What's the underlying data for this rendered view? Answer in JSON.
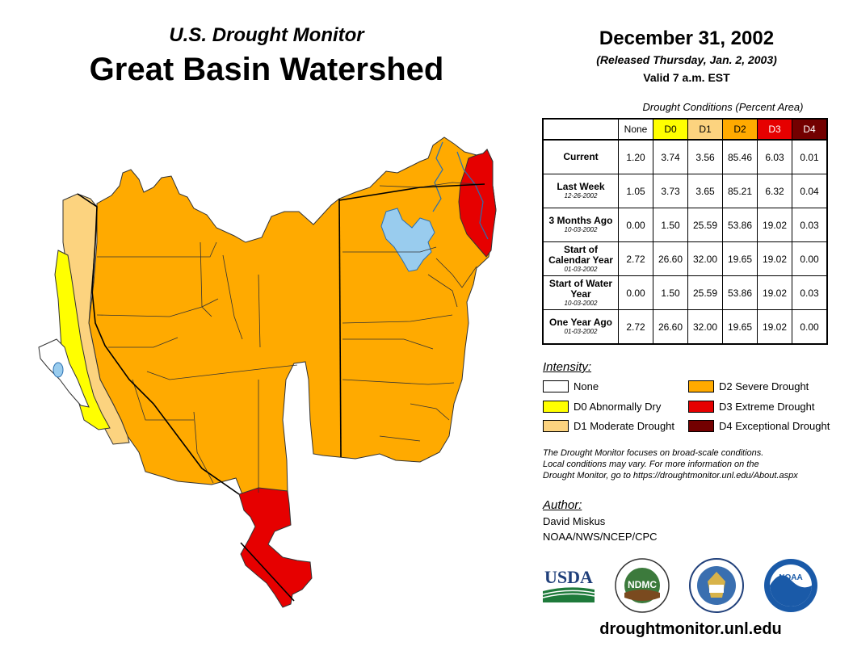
{
  "header": {
    "subtitle": "U.S. Drought Monitor",
    "title": "Great Basin Watershed",
    "date": "December 31, 2002",
    "released": "(Released Thursday, Jan. 2, 2003)",
    "valid": "Valid 7 a.m. EST"
  },
  "colors": {
    "none": "#ffffff",
    "d0": "#ffff00",
    "d1": "#fcd37f",
    "d2": "#ffaa00",
    "d3": "#e60000",
    "d4": "#730000",
    "water": "#99ccee"
  },
  "table": {
    "title": "Drought Conditions (Percent Area)",
    "columns": [
      "None",
      "D0",
      "D1",
      "D2",
      "D3",
      "D4"
    ],
    "rows": [
      {
        "label": "Current",
        "date": "",
        "values": [
          "1.20",
          "3.74",
          "3.56",
          "85.46",
          "6.03",
          "0.01"
        ]
      },
      {
        "label": "Last Week",
        "date": "12-26-2002",
        "values": [
          "1.05",
          "3.73",
          "3.65",
          "85.21",
          "6.32",
          "0.04"
        ]
      },
      {
        "label": "3 Months Ago",
        "date": "10-03-2002",
        "values": [
          "0.00",
          "1.50",
          "25.59",
          "53.86",
          "19.02",
          "0.03"
        ]
      },
      {
        "label": "Start of Calendar Year",
        "date": "01-03-2002",
        "values": [
          "2.72",
          "26.60",
          "32.00",
          "19.65",
          "19.02",
          "0.00"
        ]
      },
      {
        "label": "Start of Water Year",
        "date": "10-03-2002",
        "values": [
          "0.00",
          "1.50",
          "25.59",
          "53.86",
          "19.02",
          "0.03"
        ]
      },
      {
        "label": "One Year Ago",
        "date": "01-03-2002",
        "values": [
          "2.72",
          "26.60",
          "32.00",
          "19.65",
          "19.02",
          "0.00"
        ]
      }
    ]
  },
  "legend": {
    "heading": "Intensity:",
    "items": {
      "none": "None",
      "d0": "D0 Abnormally Dry",
      "d1": "D1 Moderate Drought",
      "d2": "D2 Severe Drought",
      "d3": "D3 Extreme Drought",
      "d4": "D4 Exceptional Drought"
    }
  },
  "note": {
    "line1": "The Drought Monitor focuses on broad-scale conditions.",
    "line2": "Local conditions may vary. For more information on the",
    "line3": "Drought Monitor, go to https://droughtmonitor.unl.edu/About.aspx"
  },
  "author": {
    "heading": "Author:",
    "name": "David Miskus",
    "org": "NOAA/NWS/NCEP/CPC"
  },
  "logos": {
    "usda": "USDA",
    "ndmc": "NDMC",
    "noaa": "NOAA"
  },
  "footer": {
    "url": "droughtmonitor.unl.edu"
  }
}
